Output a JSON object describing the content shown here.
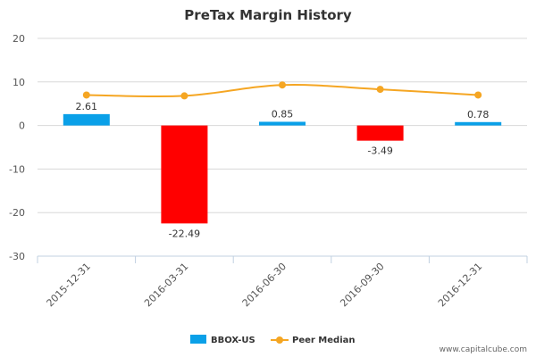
{
  "chart_data": {
    "type": "bar",
    "title": "PreTax Margin History",
    "categories": [
      "2015-12-31",
      "2016-03-31",
      "2016-06-30",
      "2016-09-30",
      "2016-12-31"
    ],
    "series": [
      {
        "name": "BBOX-US",
        "kind": "bar",
        "values": [
          2.61,
          -22.49,
          0.85,
          -3.49,
          0.78
        ],
        "labels": [
          "2.61",
          "-22.49",
          "0.85",
          "-3.49",
          "0.78"
        ],
        "color_positive": "#0aa0e8",
        "color_negative": "#ff0000"
      },
      {
        "name": "Peer Median",
        "kind": "line",
        "values": [
          7.0,
          6.8,
          9.3,
          8.3,
          7.0
        ],
        "color": "#f5a623"
      }
    ],
    "yticks": [
      20,
      10,
      0,
      -10,
      -20,
      -30
    ],
    "ylim": [
      -30,
      20
    ],
    "xlabel": "",
    "ylabel": "",
    "legend": "bottom-center"
  },
  "watermark": "www.capitalcube.com"
}
